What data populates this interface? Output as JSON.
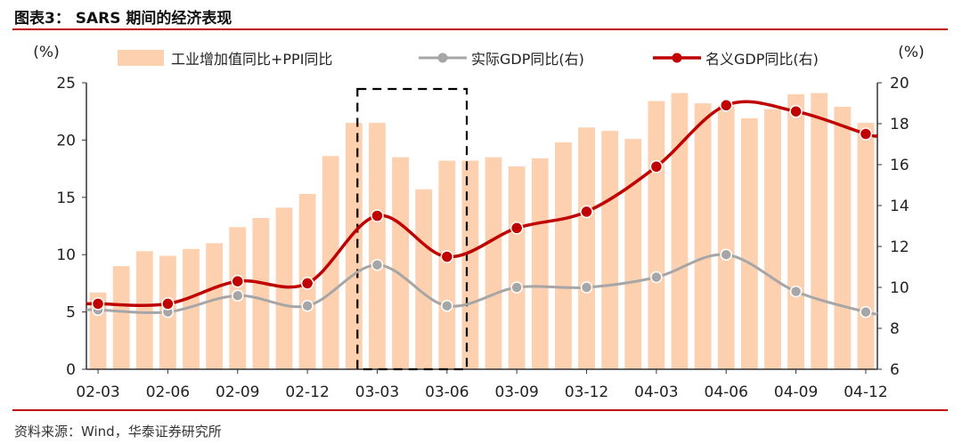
{
  "figure": {
    "title": "图表3： SARS 期间的经济表现",
    "source": "资料来源：Wind，华泰证券研究所"
  },
  "colors": {
    "bar": "#fdd0b0",
    "real_gdp": "#a6a6a6",
    "nominal_gdp": "#c00000",
    "rule": "#c00000"
  },
  "chart_data": {
    "type": "bar",
    "left_unit": "(%)",
    "right_unit": "(%)",
    "x_tick_labels": [
      "02-03",
      "02-06",
      "02-09",
      "02-12",
      "03-03",
      "03-06",
      "03-09",
      "03-12",
      "04-03",
      "04-06",
      "04-09",
      "04-12"
    ],
    "categories": [
      "02-03",
      "02-04",
      "02-05",
      "02-06",
      "02-07",
      "02-08",
      "02-09",
      "02-10",
      "02-11",
      "02-12",
      "03-01",
      "03-02",
      "03-03",
      "03-04",
      "03-05",
      "03-06",
      "03-07",
      "03-08",
      "03-09",
      "03-10",
      "03-11",
      "03-12",
      "04-01",
      "04-02",
      "04-03",
      "04-04",
      "04-05",
      "04-06",
      "04-07",
      "04-08",
      "04-09",
      "04-10",
      "04-11",
      "04-12"
    ],
    "ylim_left": [
      0,
      25
    ],
    "yticks_left": [
      0,
      5,
      10,
      15,
      20,
      25
    ],
    "ylim_right": [
      6,
      20
    ],
    "yticks_right": [
      6,
      8,
      10,
      12,
      14,
      16,
      18,
      20
    ],
    "highlight_range": [
      "03-03",
      "03-06"
    ],
    "series": [
      {
        "name": "工业增加值同比+PPI同比",
        "type": "bar",
        "axis": "left",
        "values": [
          6.7,
          9.0,
          10.3,
          9.9,
          10.5,
          11.0,
          12.4,
          13.2,
          14.1,
          15.3,
          18.6,
          21.5,
          21.5,
          18.5,
          15.7,
          18.2,
          18.2,
          18.5,
          17.7,
          18.4,
          19.8,
          21.1,
          20.8,
          20.1,
          23.4,
          24.1,
          23.2,
          23.0,
          21.9,
          22.7,
          24.0,
          24.1,
          22.9,
          21.5
        ]
      },
      {
        "name": "实际GDP同比(右)",
        "type": "line",
        "axis": "right",
        "x": [
          "02-03",
          "02-06",
          "02-09",
          "02-12",
          "03-03",
          "03-06",
          "03-09",
          "03-12",
          "04-03",
          "04-06",
          "04-09",
          "04-12"
        ],
        "values": [
          8.9,
          8.8,
          9.6,
          9.1,
          11.1,
          9.1,
          10.0,
          10.0,
          10.5,
          11.6,
          9.8,
          8.8
        ]
      },
      {
        "name": "名义GDP同比(右)",
        "type": "line",
        "axis": "right",
        "x": [
          "02-03",
          "02-06",
          "02-09",
          "02-12",
          "03-03",
          "03-06",
          "03-09",
          "03-12",
          "04-03",
          "04-06",
          "04-09",
          "04-12"
        ],
        "values": [
          9.2,
          9.2,
          10.3,
          10.2,
          13.5,
          11.5,
          12.9,
          13.7,
          15.9,
          18.9,
          18.6,
          17.5
        ]
      }
    ]
  }
}
